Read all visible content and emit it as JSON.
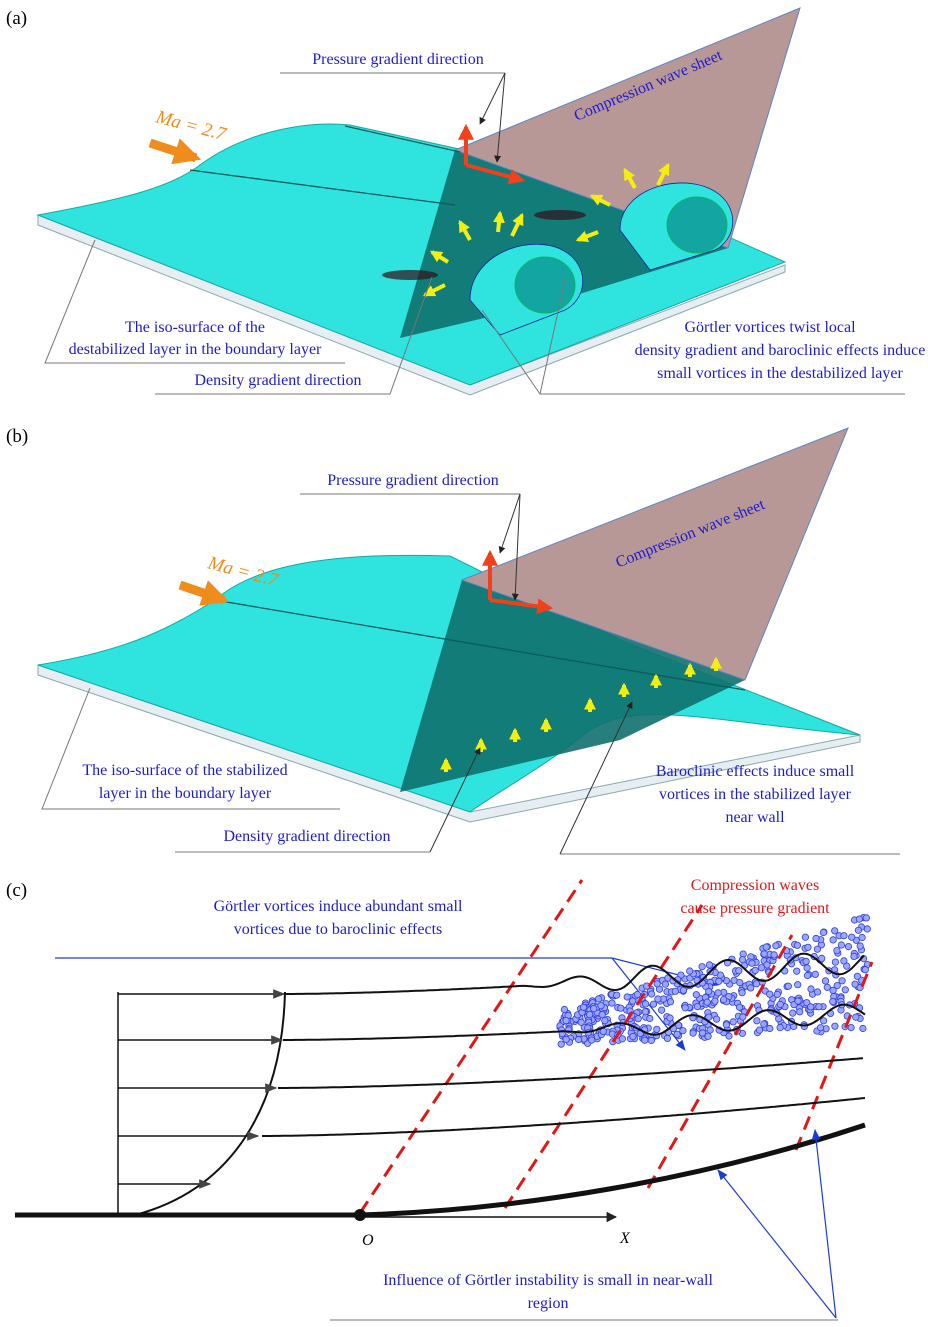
{
  "panels": [
    {
      "label": "(a)",
      "flow": "Ma = 2.7",
      "sheet": "Compression wave sheet",
      "pressure": "Pressure gradient direction",
      "density": "Density gradient direction",
      "surface": [
        "The iso-surface of the",
        "destabilized layer in the boundary layer"
      ],
      "vortices": [
        "Görtler vortices twist local",
        "density gradient and baroclinic effects induce",
        "small vortices in the destabilized layer"
      ]
    },
    {
      "label": "(b)",
      "flow": "Ma = 2.7",
      "sheet": "Compression wave sheet",
      "pressure": "Pressure gradient direction",
      "density": "Density gradient direction",
      "surface": [
        "The iso-surface of the stabilized",
        "layer in the boundary layer"
      ],
      "vortices": [
        "Baroclinic effects induce small",
        "vortices in the stabilized layer",
        "near wall"
      ]
    },
    {
      "label": "(c)",
      "waves": [
        "Compression waves",
        "cause pressure gradient"
      ],
      "vortices": [
        "Görtler vortices induce abundant small",
        "vortices due to baroclinic effects"
      ],
      "origin": "O",
      "axis": "X",
      "near_wall": [
        "Influence of Görtler instability is small in near-wall",
        "region"
      ]
    }
  ]
}
